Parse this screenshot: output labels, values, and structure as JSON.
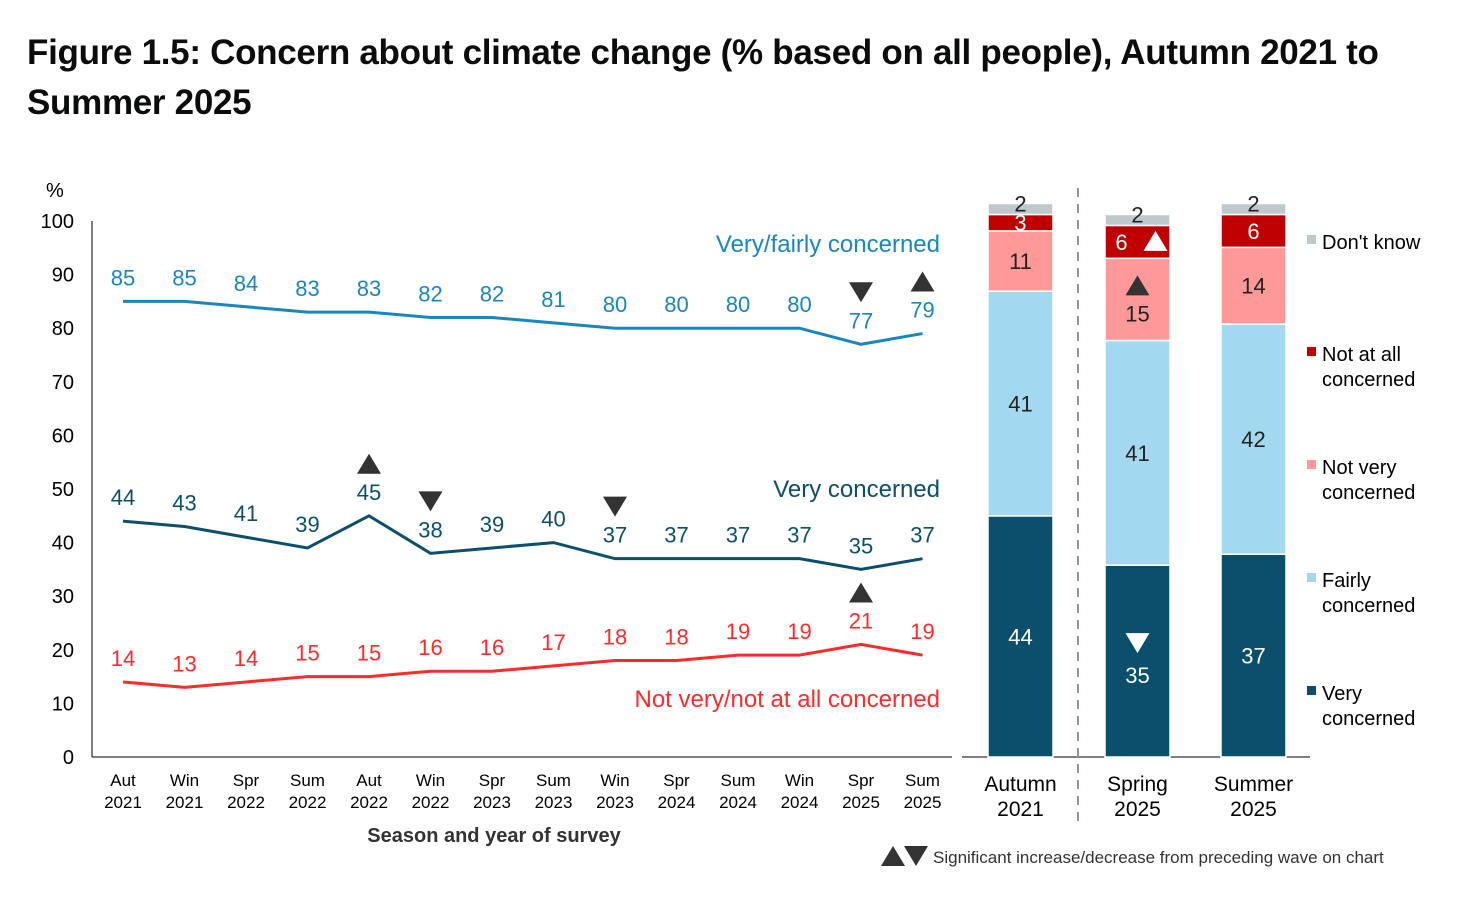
{
  "title": "Figure 1.5: Concern about climate change (% based on all people), Autumn 2021 to Summer 2025",
  "chart_data": [
    {
      "type": "line",
      "ylabel": "%",
      "xlabel": "Season and year of survey",
      "ylim": [
        0,
        100
      ],
      "yticks": [
        0,
        10,
        20,
        30,
        40,
        50,
        60,
        70,
        80,
        90,
        100
      ],
      "grid": false,
      "categories": [
        [
          "Aut",
          "2021"
        ],
        [
          "Win",
          "2021"
        ],
        [
          "Spr",
          "2022"
        ],
        [
          "Sum",
          "2022"
        ],
        [
          "Aut",
          "2022"
        ],
        [
          "Win",
          "2022"
        ],
        [
          "Spr",
          "2023"
        ],
        [
          "Sum",
          "2023"
        ],
        [
          "Win",
          "2023"
        ],
        [
          "Spr",
          "2024"
        ],
        [
          "Sum",
          "2024"
        ],
        [
          "Win",
          "2024"
        ],
        [
          "Spr",
          "2025"
        ],
        [
          "Sum",
          "2025"
        ]
      ],
      "series": [
        {
          "name": "Very/fairly concerned",
          "color": "#1a86bf",
          "values": [
            85,
            85,
            84,
            83,
            83,
            82,
            82,
            81,
            80,
            80,
            80,
            80,
            77,
            79
          ],
          "significance": {
            "12": "down",
            "13": "up"
          }
        },
        {
          "name": "Very concerned",
          "color": "#0b4f6c",
          "values": [
            44,
            43,
            41,
            39,
            45,
            38,
            39,
            40,
            37,
            37,
            37,
            37,
            35,
            37
          ],
          "significance": {
            "4": "up",
            "5": "down",
            "8": "down"
          }
        },
        {
          "name": "Not very/not at all concerned",
          "color": "#ff2a2a",
          "values": [
            14,
            13,
            14,
            15,
            15,
            16,
            16,
            17,
            18,
            18,
            19,
            19,
            21,
            19
          ],
          "significance": {
            "12": "up"
          }
        }
      ]
    },
    {
      "type": "bar",
      "stacked": true,
      "categories": [
        [
          "Autumn",
          "2021"
        ],
        [
          "Spring",
          "2025"
        ],
        [
          "Summer",
          "2025"
        ]
      ],
      "series": [
        {
          "name": "Very concerned",
          "color": "#0b4f6c",
          "values": [
            44,
            35,
            37
          ],
          "significance": {
            "1": "down"
          }
        },
        {
          "name": "Fairly concerned",
          "color": "#a3d9f0",
          "values": [
            41,
            41,
            42
          ],
          "significance": {}
        },
        {
          "name": "Not very concerned",
          "color": "#ff9999",
          "values": [
            11,
            15,
            14
          ],
          "significance": {
            "1": "up"
          }
        },
        {
          "name": "Not at all concerned",
          "color": "#c00000",
          "values": [
            3,
            6,
            6
          ],
          "significance": {
            "1": "up"
          }
        },
        {
          "name": "Don't know",
          "color": "#bfc8cc",
          "values": [
            2,
            2,
            2
          ],
          "significance": {}
        }
      ],
      "legend": [
        "Don't know",
        [
          "Not at all",
          "concerned"
        ],
        [
          "Not very",
          "concerned"
        ],
        [
          "Fairly",
          "concerned"
        ],
        [
          "Very",
          "concerned"
        ]
      ],
      "legend_placement": "right"
    }
  ],
  "footnote": "Significant increase/decrease from preceding wave on chart"
}
